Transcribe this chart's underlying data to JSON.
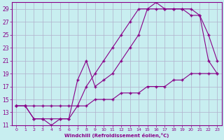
{
  "bg_color": "#c8eef0",
  "grid_color": "#b0b0cc",
  "line_color": "#880088",
  "marker": "+",
  "xlabel": "Windchill (Refroidissement éolien,°C)",
  "xlabel_color": "#880088",
  "tick_color": "#880088",
  "ylim": [
    11,
    30
  ],
  "xlim": [
    -0.5,
    23.5
  ],
  "yticks": [
    11,
    13,
    15,
    17,
    19,
    21,
    23,
    25,
    27,
    29
  ],
  "xticks": [
    0,
    1,
    2,
    3,
    4,
    5,
    6,
    7,
    8,
    9,
    10,
    11,
    12,
    13,
    14,
    15,
    16,
    17,
    18,
    19,
    20,
    21,
    22,
    23
  ],
  "line1": {
    "x": [
      0,
      1,
      2,
      3,
      4,
      5,
      6,
      7,
      8,
      9,
      10,
      11,
      12,
      13,
      14,
      15,
      16,
      17,
      18,
      19,
      20,
      21,
      22,
      23
    ],
    "y": [
      14,
      14,
      12,
      12,
      11,
      12,
      12,
      14,
      17,
      19,
      21,
      23,
      25,
      27,
      29,
      29,
      29,
      29,
      29,
      29,
      29,
      28,
      25,
      21
    ]
  },
  "line2": {
    "x": [
      0,
      1,
      2,
      3,
      4,
      5,
      6,
      7,
      8,
      9,
      10,
      11,
      12,
      13,
      14,
      15,
      16,
      17,
      18,
      19,
      20,
      21,
      22,
      23
    ],
    "y": [
      14,
      14,
      12,
      12,
      12,
      12,
      12,
      18,
      21,
      17,
      18,
      19,
      21,
      23,
      25,
      29,
      30,
      29,
      29,
      29,
      28,
      28,
      21,
      19
    ]
  },
  "line3": {
    "x": [
      0,
      1,
      2,
      3,
      4,
      5,
      6,
      7,
      8,
      9,
      10,
      11,
      12,
      13,
      14,
      15,
      16,
      17,
      18,
      19,
      20,
      21,
      22,
      23
    ],
    "y": [
      14,
      14,
      14,
      14,
      14,
      14,
      14,
      14,
      14,
      15,
      15,
      15,
      16,
      16,
      16,
      17,
      17,
      17,
      18,
      18,
      19,
      19,
      19,
      19
    ]
  }
}
